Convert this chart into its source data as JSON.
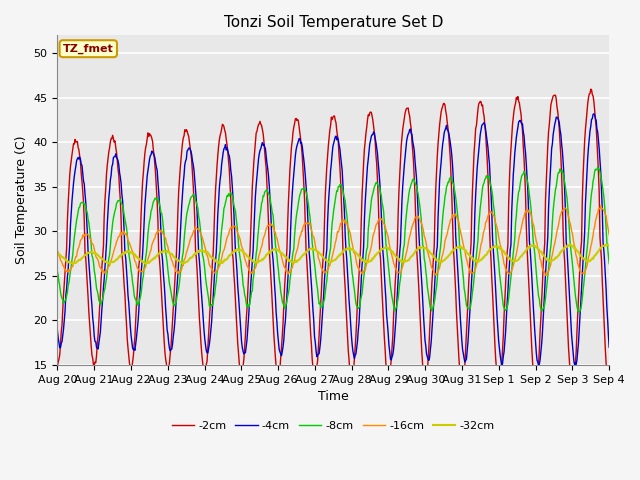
{
  "title": "Tonzi Soil Temperature Set D",
  "xlabel": "Time",
  "ylabel": "Soil Temperature (C)",
  "ylim": [
    15,
    52
  ],
  "yticks": [
    15,
    20,
    25,
    30,
    35,
    40,
    45,
    50
  ],
  "legend_labels": [
    "-2cm",
    "-4cm",
    "-8cm",
    "-16cm",
    "-32cm"
  ],
  "legend_colors": [
    "#cc0000",
    "#0000cc",
    "#00cc00",
    "#ff8800",
    "#cccc00"
  ],
  "annotation_text": "TZ_fmet",
  "annotation_bg": "#ffffcc",
  "annotation_border": "#cc9900",
  "plot_bg": "#e8e8e8",
  "fig_bg": "#f5f5f5",
  "grid_color": "#ffffff",
  "num_days": 15,
  "day_labels": [
    "Aug 20",
    "Aug 21",
    "Aug 22",
    "Aug 23",
    "Aug 24",
    "Aug 25",
    "Aug 26",
    "Aug 27",
    "Aug 28",
    "Aug 29",
    "Aug 30",
    "Aug 31",
    "Sep 1",
    "Sep 2",
    "Sep 3",
    "Sep 4"
  ]
}
